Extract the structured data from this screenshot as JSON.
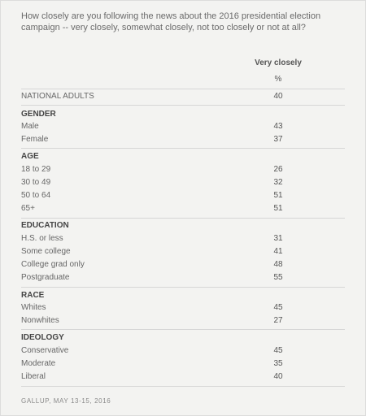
{
  "question": "How closely are you following the news about the 2016 presidential election campaign -- very closely, somewhat closely, not too closely or not at all?",
  "column_header": "Very closely",
  "column_unit": "%",
  "national": {
    "label": "NATIONAL ADULTS",
    "value": "40"
  },
  "groups": [
    {
      "name": "GENDER",
      "rows": [
        {
          "label": "Male",
          "value": "43"
        },
        {
          "label": "Female",
          "value": "37"
        }
      ]
    },
    {
      "name": "AGE",
      "rows": [
        {
          "label": "18 to 29",
          "value": "26"
        },
        {
          "label": "30 to 49",
          "value": "32"
        },
        {
          "label": "50 to 64",
          "value": "51"
        },
        {
          "label": "65+",
          "value": "51"
        }
      ]
    },
    {
      "name": "EDUCATION",
      "rows": [
        {
          "label": "H.S. or less",
          "value": "31"
        },
        {
          "label": "Some college",
          "value": "41"
        },
        {
          "label": "College grad only",
          "value": "48"
        },
        {
          "label": "Postgraduate",
          "value": "55"
        }
      ]
    },
    {
      "name": "RACE",
      "rows": [
        {
          "label": "Whites",
          "value": "45"
        },
        {
          "label": "Nonwhites",
          "value": "27"
        }
      ]
    },
    {
      "name": "IDEOLOGY",
      "rows": [
        {
          "label": "Conservative",
          "value": "45"
        },
        {
          "label": "Moderate",
          "value": "35"
        },
        {
          "label": "Liberal",
          "value": "40"
        }
      ]
    }
  ],
  "source": "GALLUP, MAY 13-15, 2016"
}
